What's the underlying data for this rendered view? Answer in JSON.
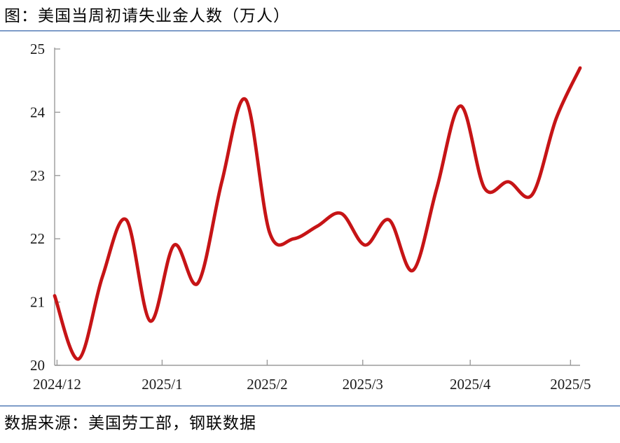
{
  "page": {
    "title": "图：美国当周初请失业金人数（万人）",
    "source": "数据来源：美国劳工部，钢联数据"
  },
  "colors": {
    "line": "#C61416",
    "axis": "#9B9B9B",
    "divider": "#7E9CC8",
    "tick_text": "#1a1a1a"
  },
  "chart_data": {
    "type": "line",
    "title": "美国当周初请失业金人数（万人）",
    "series": [
      {
        "name": "美国当周初请失业金人数",
        "x_unit": "week_index",
        "x": [
          0,
          1,
          2,
          3,
          4,
          5,
          6,
          7,
          8,
          9,
          10,
          11,
          12,
          13,
          14,
          15,
          16,
          17,
          18,
          19,
          20,
          21,
          22
        ],
        "values": [
          21.1,
          20.1,
          21.4,
          22.3,
          20.7,
          21.9,
          21.3,
          22.9,
          24.2,
          22.1,
          22.0,
          22.2,
          22.4,
          21.9,
          22.3,
          21.5,
          22.8,
          24.1,
          22.8,
          22.9,
          22.7,
          23.9,
          24.7
        ]
      }
    ],
    "x_ticks": [
      {
        "label": "2024/12",
        "pos": 0.1
      },
      {
        "label": "2025/1",
        "pos": 4.5
      },
      {
        "label": "2025/2",
        "pos": 8.9
      },
      {
        "label": "2025/3",
        "pos": 12.9
      },
      {
        "label": "2025/4",
        "pos": 17.4
      },
      {
        "label": "2025/5",
        "pos": 21.6
      }
    ],
    "x_tick_pos_unit": "week_index",
    "y_ticks": [
      20,
      21,
      22,
      23,
      24,
      25
    ],
    "ylim": [
      20,
      25
    ],
    "xlabel": "",
    "ylabel": "",
    "grid": false,
    "legend": "none",
    "smooth": true
  }
}
